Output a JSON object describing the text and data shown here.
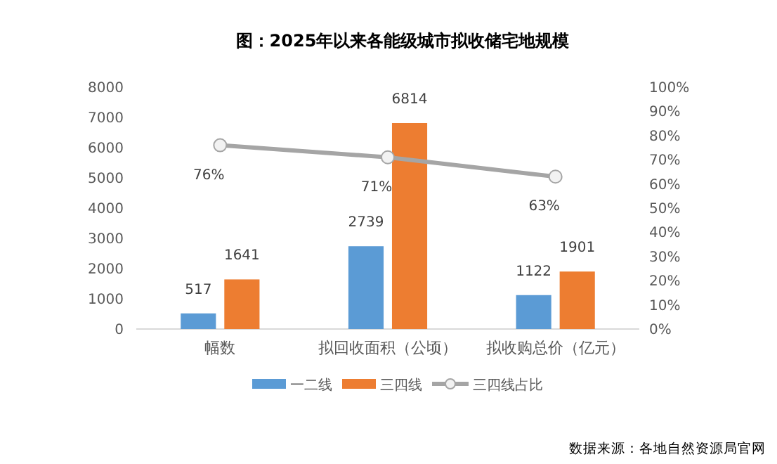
{
  "chart_data": {
    "type": "bar",
    "title": "图：2025年以来各能级城市拟收储宅地规模",
    "categories": [
      "幅数",
      "拟回收面积（公顷）",
      "拟收购总价（亿元）"
    ],
    "series": [
      {
        "name": "一二线",
        "color": "#5b9bd5",
        "values": [
          517,
          2739,
          1122
        ]
      },
      {
        "name": "三四线",
        "color": "#ed7d31",
        "values": [
          1641,
          6814,
          1901
        ]
      },
      {
        "name": "三四线占比",
        "type": "line",
        "axis": "y2",
        "color": "#a5a5a5",
        "values": [
          76,
          71,
          63
        ],
        "value_labels": [
          "76%",
          "71%",
          "63%"
        ]
      }
    ],
    "ylim": [
      0,
      8000
    ],
    "yticks": [
      0,
      1000,
      2000,
      3000,
      4000,
      5000,
      6000,
      7000,
      8000
    ],
    "y2lim": [
      0,
      100
    ],
    "y2ticks": [
      {
        "value": 0,
        "label": "0%"
      },
      {
        "value": 10,
        "label": "10%"
      },
      {
        "value": 20,
        "label": "20%"
      },
      {
        "value": 30,
        "label": "30%"
      },
      {
        "value": 40,
        "label": "40%"
      },
      {
        "value": 50,
        "label": "50%"
      },
      {
        "value": 60,
        "label": "60%"
      },
      {
        "value": 70,
        "label": "70%"
      },
      {
        "value": 80,
        "label": "80%"
      },
      {
        "value": 90,
        "label": "90%"
      },
      {
        "value": 100,
        "label": "100%"
      }
    ],
    "data_labels": true,
    "grid": false,
    "legend": "bottom",
    "marker": "circle",
    "line_style": "solid",
    "annotations": [
      "数据来源：各地自然资源局官网"
    ]
  }
}
